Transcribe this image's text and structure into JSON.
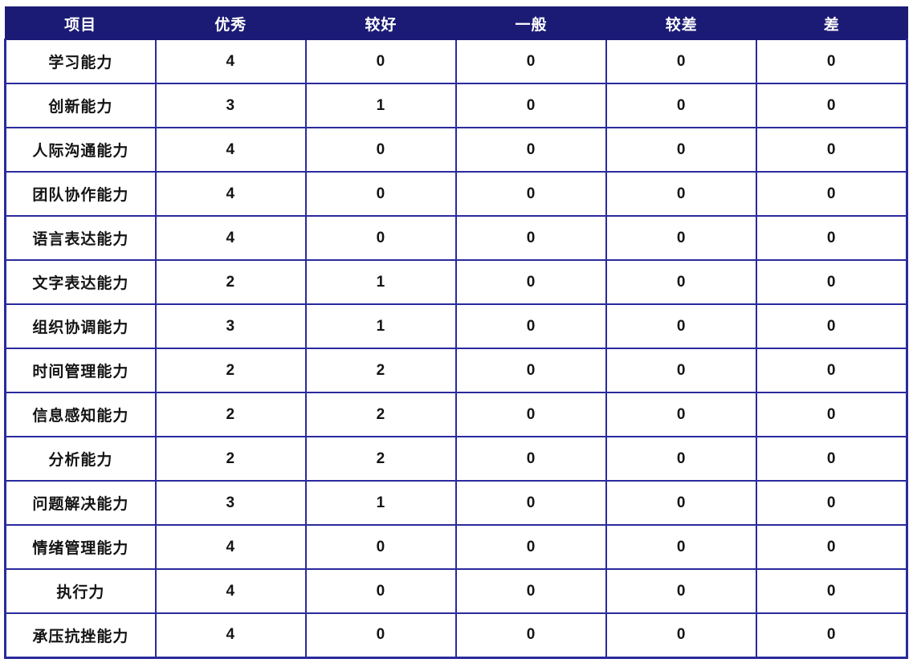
{
  "chart_data": {
    "type": "table",
    "columns": [
      "项目",
      "优秀",
      "较好",
      "一般",
      "较差",
      "差"
    ],
    "rows": [
      {
        "label": "学习能力",
        "values": [
          4,
          0,
          0,
          0,
          0
        ]
      },
      {
        "label": "创新能力",
        "values": [
          3,
          1,
          0,
          0,
          0
        ]
      },
      {
        "label": "人际沟通能力",
        "values": [
          4,
          0,
          0,
          0,
          0
        ]
      },
      {
        "label": "团队协作能力",
        "values": [
          4,
          0,
          0,
          0,
          0
        ]
      },
      {
        "label": "语言表达能力",
        "values": [
          4,
          0,
          0,
          0,
          0
        ]
      },
      {
        "label": "文字表达能力",
        "values": [
          2,
          1,
          0,
          0,
          0
        ]
      },
      {
        "label": "组织协调能力",
        "values": [
          3,
          1,
          0,
          0,
          0
        ]
      },
      {
        "label": "时间管理能力",
        "values": [
          2,
          2,
          0,
          0,
          0
        ]
      },
      {
        "label": "信息感知能力",
        "values": [
          2,
          2,
          0,
          0,
          0
        ]
      },
      {
        "label": "分析能力",
        "values": [
          2,
          2,
          0,
          0,
          0
        ]
      },
      {
        "label": "问题解决能力",
        "values": [
          3,
          1,
          0,
          0,
          0
        ]
      },
      {
        "label": "情绪管理能力",
        "values": [
          4,
          0,
          0,
          0,
          0
        ]
      },
      {
        "label": "执行力",
        "values": [
          4,
          0,
          0,
          0,
          0
        ]
      },
      {
        "label": "承压抗挫能力",
        "values": [
          4,
          0,
          0,
          0,
          0
        ]
      }
    ],
    "layout": {
      "grid": true,
      "header_position": "top"
    }
  },
  "colors": {
    "header_bg": "#1b1b75",
    "header_text": "#ffffff",
    "border": "#2a2a9d",
    "cell_text": "#141414",
    "background": "#ffffff"
  }
}
